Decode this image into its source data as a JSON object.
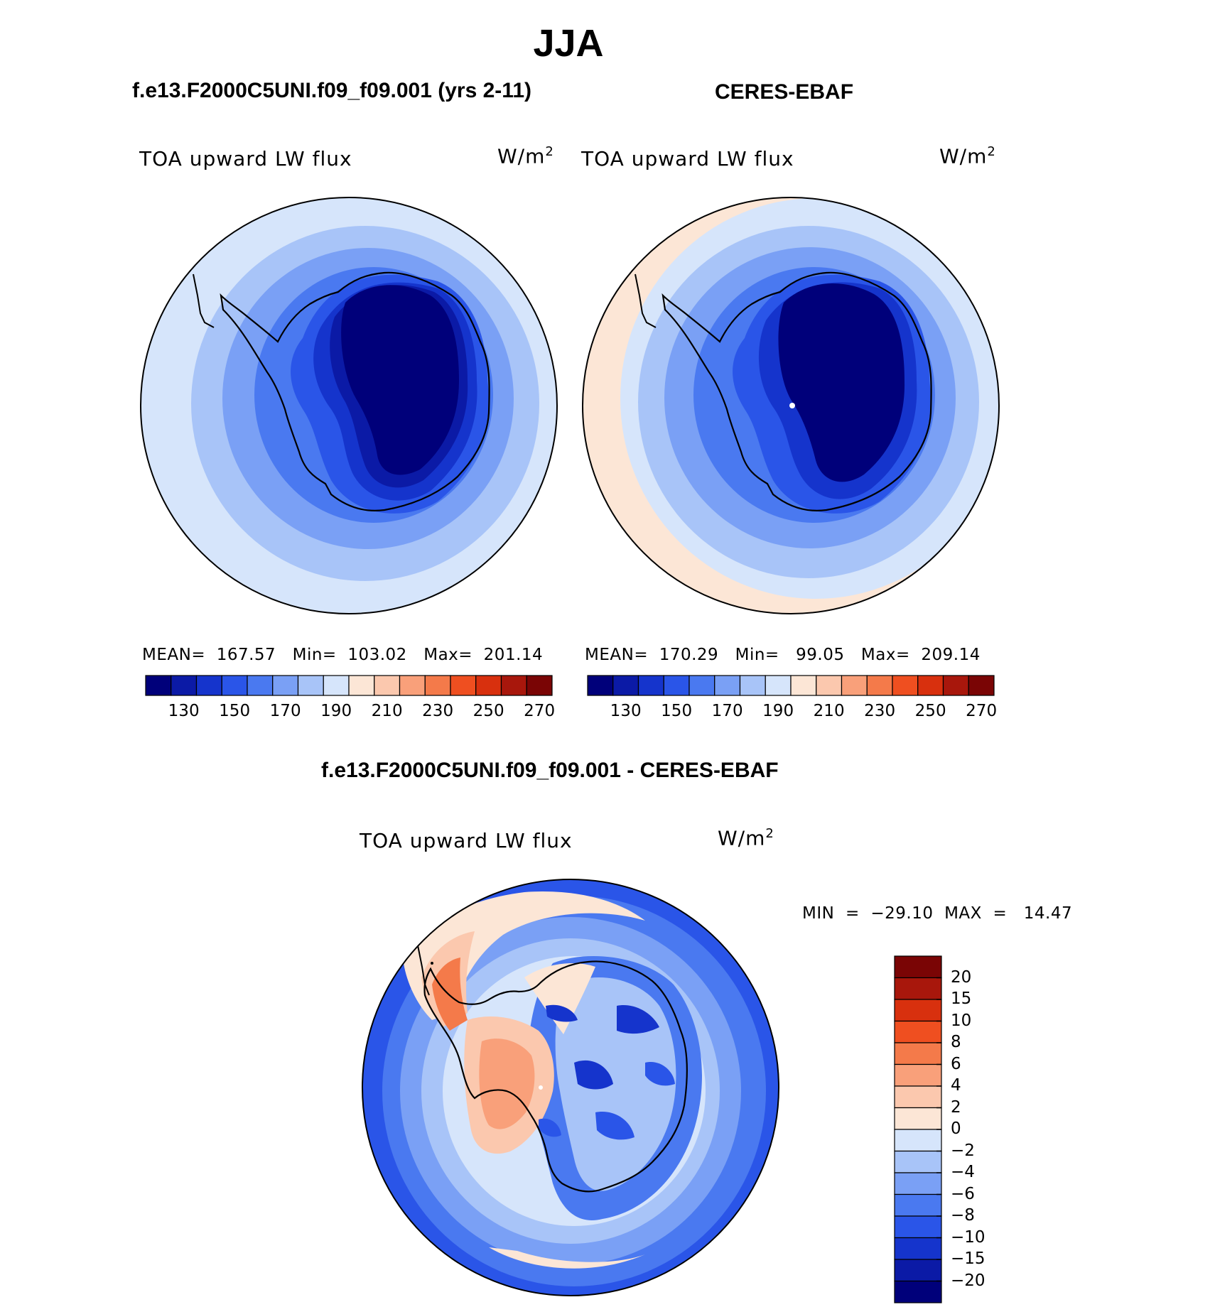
{
  "figure": {
    "season": "JJA",
    "left_title": "f.e13.F2000C5UNI.f09_f09.001 (yrs 2-11)",
    "right_title": "CERES-EBAF",
    "diff_title": "f.e13.F2000C5UNI.f09_f09.001 - CERES-EBAF"
  },
  "panels": {
    "model": {
      "variable": "TOA upward LW flux",
      "units": "W/m",
      "units_sup": "2",
      "stats_text": "MEAN=  167.57   Min=  103.02   Max=  201.14"
    },
    "obs": {
      "variable": "TOA upward LW flux",
      "units": "W/m",
      "units_sup": "2",
      "stats_text": "MEAN=  170.29   Min=   99.05   Max=  209.14"
    },
    "diff": {
      "variable": "TOA upward LW flux",
      "units": "W/m",
      "units_sup": "2",
      "stats_text": "MIN  =  −29.10  MAX  =   14.47"
    }
  },
  "colorbars": {
    "abs_colors": [
      "#00007a",
      "#0b1aa6",
      "#1534cc",
      "#2a55e8",
      "#4a79f0",
      "#7aa0f5",
      "#a8c4f8",
      "#d6e5fb",
      "#fce6d6",
      "#fbc8ae",
      "#f9a07a",
      "#f47a4a",
      "#ef4f20",
      "#d8300e",
      "#a8170c",
      "#7a0505"
    ],
    "abs_ticks": [
      "130",
      "150",
      "170",
      "190",
      "210",
      "230",
      "250",
      "270"
    ],
    "diff_colors": [
      "#00007a",
      "#0b1aa6",
      "#1534cc",
      "#2a55e8",
      "#4a79f0",
      "#7aa0f5",
      "#a8c4f8",
      "#d6e5fb",
      "#fce6d6",
      "#fbc8ae",
      "#f9a07a",
      "#f47a4a",
      "#ef4f20",
      "#d8300e",
      "#a8170c",
      "#7a0505"
    ],
    "diff_ticks": [
      "20",
      "15",
      "10",
      "8",
      "6",
      "4",
      "2",
      "0",
      "−2",
      "−4",
      "−6",
      "−8",
      "−10",
      "−15",
      "−20"
    ]
  },
  "chart_data": [
    {
      "type": "map",
      "title": "f.e13.F2000C5UNI.f09_f09.001 (yrs 2-11)",
      "variable": "TOA upward LW flux",
      "units": "W/m2",
      "projection": "south polar stereographic",
      "mean": 167.57,
      "min": 103.02,
      "max": 201.14,
      "levels": [
        130,
        140,
        150,
        160,
        170,
        180,
        190,
        200,
        210,
        220,
        230,
        240,
        250,
        260,
        270
      ]
    },
    {
      "type": "map",
      "title": "CERES-EBAF",
      "variable": "TOA upward LW flux",
      "units": "W/m2",
      "projection": "south polar stereographic",
      "mean": 170.29,
      "min": 99.05,
      "max": 209.14,
      "levels": [
        130,
        140,
        150,
        160,
        170,
        180,
        190,
        200,
        210,
        220,
        230,
        240,
        250,
        260,
        270
      ]
    },
    {
      "type": "map",
      "title": "f.e13.F2000C5UNI.f09_f09.001 - CERES-EBAF",
      "variable": "TOA upward LW flux",
      "units": "W/m2",
      "projection": "south polar stereographic",
      "min": -29.1,
      "max": 14.47,
      "levels": [
        -20,
        -15,
        -10,
        -8,
        -6,
        -4,
        -2,
        0,
        2,
        4,
        6,
        8,
        10,
        15,
        20
      ]
    }
  ]
}
